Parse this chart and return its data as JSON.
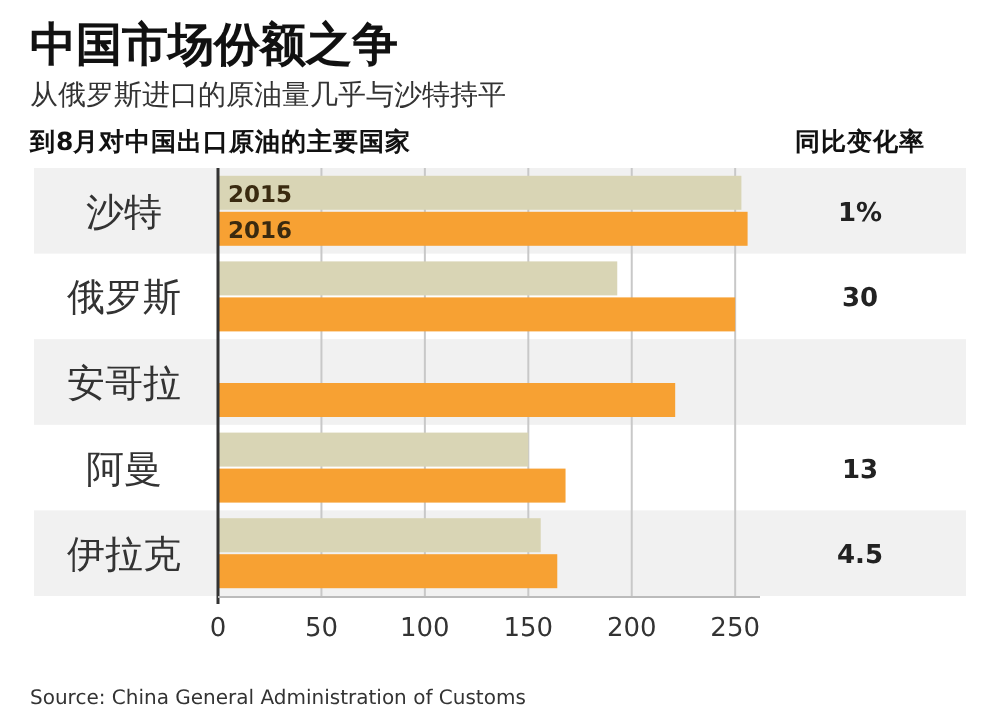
{
  "chart_data": {
    "type": "bar",
    "orientation": "horizontal",
    "title": "中国市场份额之争",
    "subtitle": "从俄罗斯进口的原油量几乎与沙特持平",
    "ylabel": "到8月对中国出口原油的主要国家",
    "categories": [
      "沙特",
      "俄罗斯",
      "安哥拉",
      "阿曼",
      "伊拉克"
    ],
    "series": [
      {
        "name": "2015",
        "color": "#d9d5b5",
        "values": [
          253,
          193,
          null,
          150,
          156
        ]
      },
      {
        "name": "2016",
        "color": "#f7a133",
        "values": [
          256,
          250,
          221,
          168,
          164
        ]
      }
    ],
    "xlim": [
      0,
      262
    ],
    "xticks": [
      0,
      50,
      100,
      150,
      200,
      250
    ],
    "grid": "x",
    "annotations": [
      "同比变化率",
      "Source: China General Administration of Customs",
      "1%",
      "30",
      "13",
      "4.5"
    ]
  }
}
